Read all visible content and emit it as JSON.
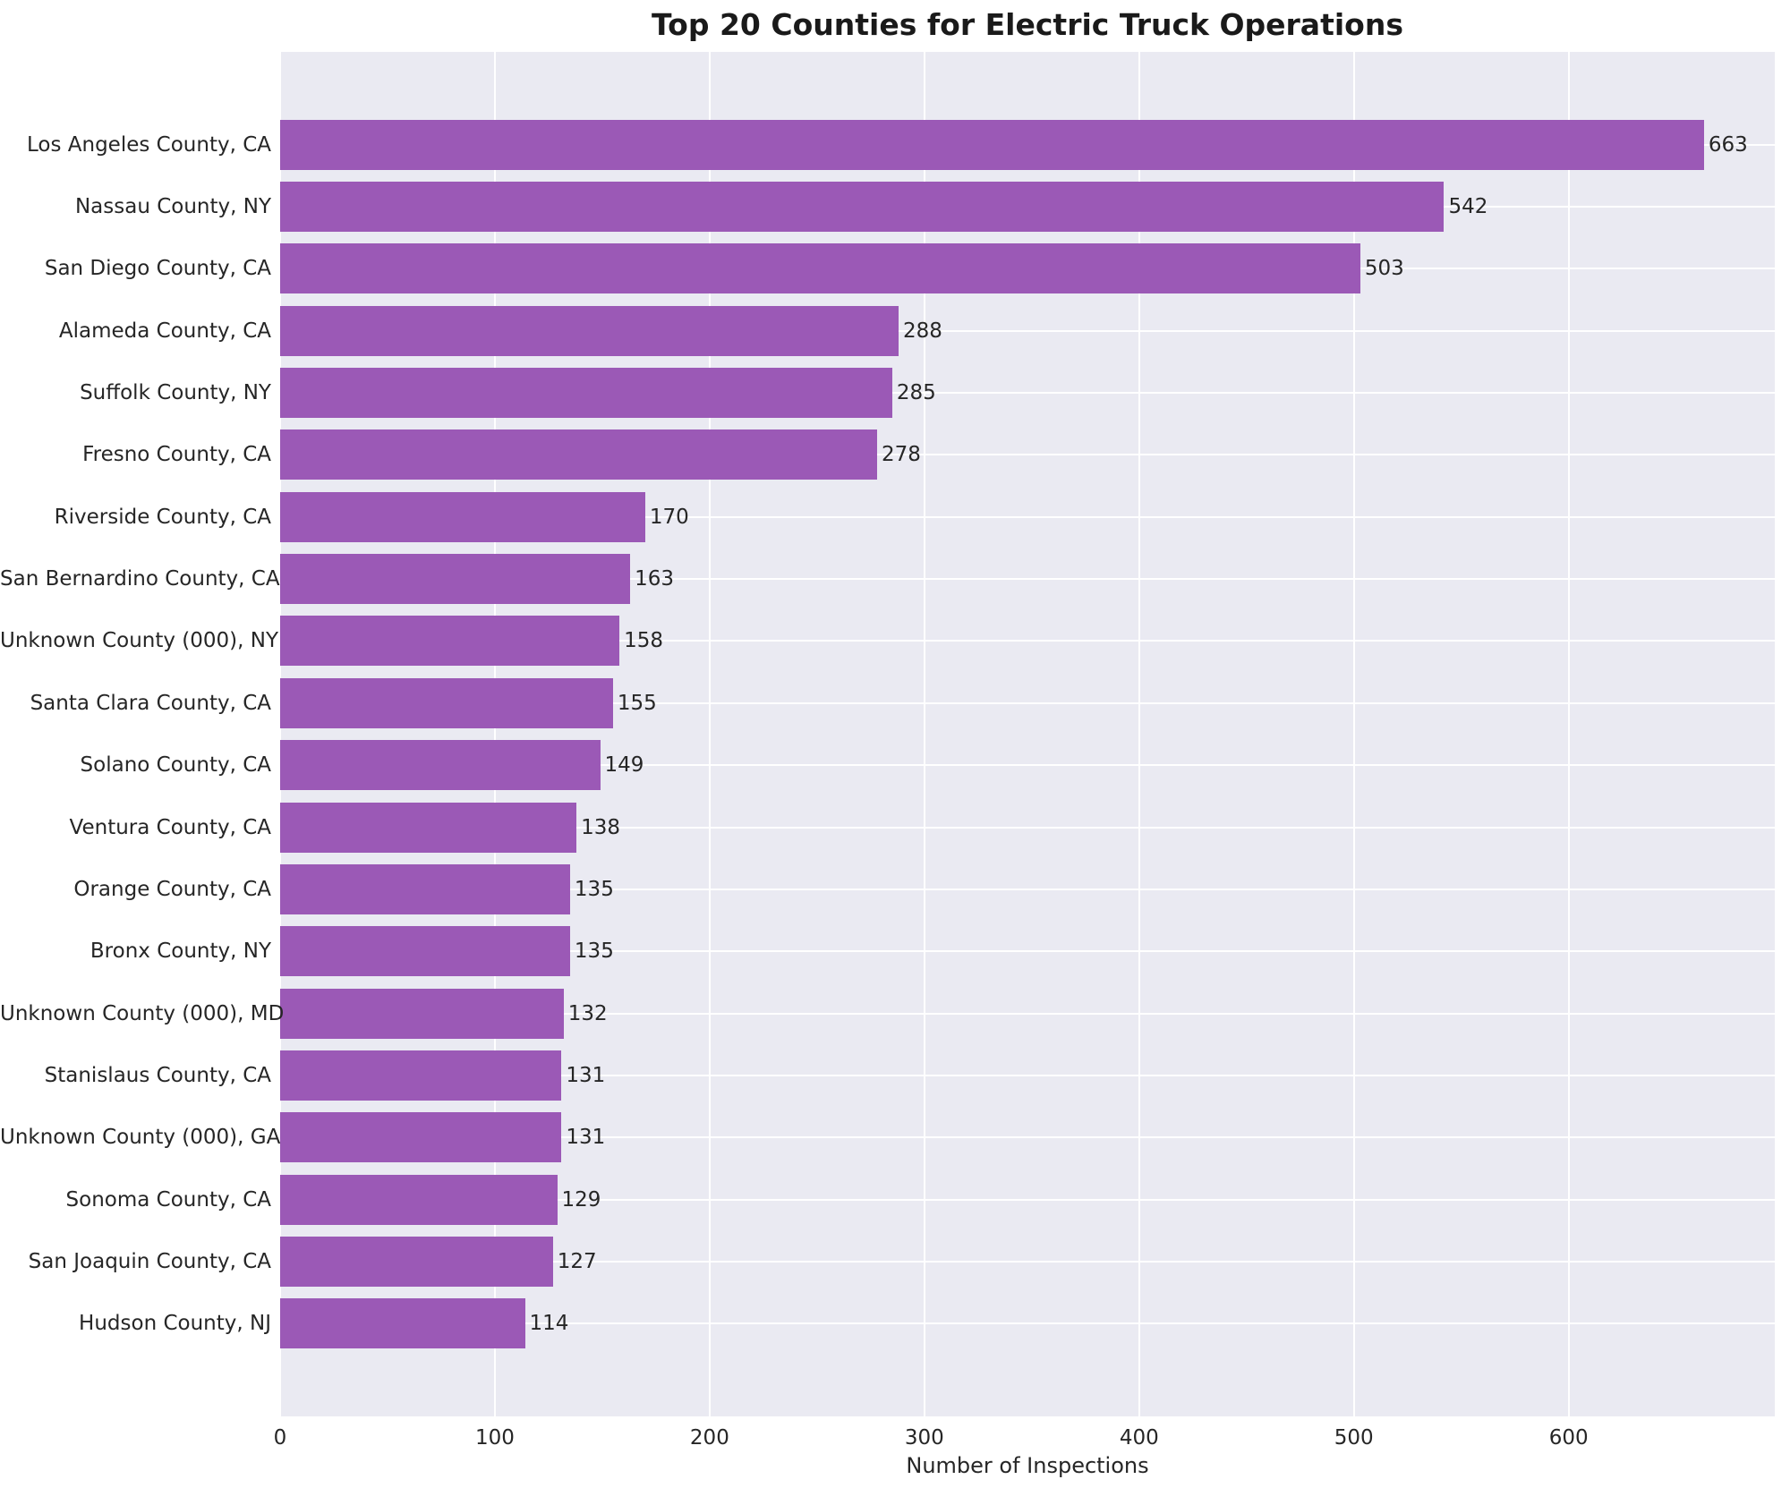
{
  "chart_data": {
    "type": "bar",
    "orientation": "horizontal",
    "title": "Top 20 Counties for Electric Truck Operations",
    "xlabel": "Number of Inspections",
    "ylabel": "",
    "categories": [
      "Los Angeles County, CA",
      "Nassau County, NY",
      "San Diego County, CA",
      "Alameda County, CA",
      "Suffolk County, NY",
      "Fresno County, CA",
      "Riverside County, CA",
      "San Bernardino County, CA",
      "Unknown County (000), NY",
      "Santa Clara County, CA",
      "Solano County, CA",
      "Ventura County, CA",
      "Orange County, CA",
      "Bronx County, NY",
      "Unknown County (000), MD",
      "Stanislaus County, CA",
      "Unknown County (000), GA",
      "Sonoma County, CA",
      "San Joaquin County, CA",
      "Hudson County, NJ"
    ],
    "values": [
      663,
      542,
      503,
      288,
      285,
      278,
      170,
      163,
      158,
      155,
      149,
      138,
      135,
      135,
      132,
      131,
      131,
      129,
      127,
      114
    ],
    "value_labels_shown": true,
    "xticks": [
      0,
      100,
      200,
      300,
      400,
      500,
      600
    ],
    "xlim": [
      0,
      696
    ],
    "grid": true,
    "legend": "none",
    "colors": {
      "bar": "#9b59b6",
      "plot_background": "#eaeaf2",
      "figure_background": "#ffffff",
      "gridline": "#ffffff",
      "tick_text": "#262626",
      "title_text": "#1a1a1a"
    }
  }
}
